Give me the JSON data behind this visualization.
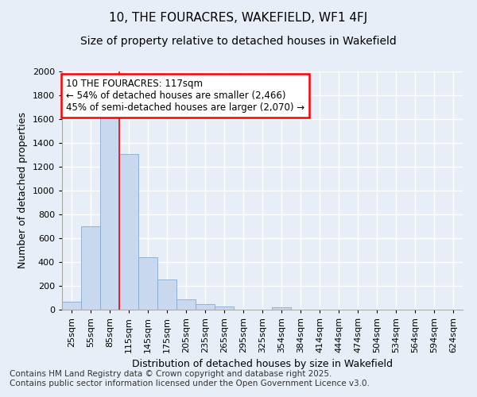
{
  "title1": "10, THE FOURACRES, WAKEFIELD, WF1 4FJ",
  "title2": "Size of property relative to detached houses in Wakefield",
  "xlabel": "Distribution of detached houses by size in Wakefield",
  "ylabel": "Number of detached properties",
  "bar_color": "#c8d8ee",
  "bar_edge_color": "#88aacc",
  "background_color": "#e8eef8",
  "grid_color": "#ffffff",
  "categories": [
    "25sqm",
    "55sqm",
    "85sqm",
    "115sqm",
    "145sqm",
    "175sqm",
    "205sqm",
    "235sqm",
    "265sqm",
    "295sqm",
    "325sqm",
    "354sqm",
    "384sqm",
    "414sqm",
    "444sqm",
    "474sqm",
    "504sqm",
    "534sqm",
    "564sqm",
    "594sqm",
    "624sqm"
  ],
  "values": [
    65,
    700,
    1660,
    1310,
    440,
    255,
    85,
    50,
    25,
    0,
    0,
    20,
    0,
    0,
    0,
    0,
    0,
    0,
    0,
    0,
    0
  ],
  "ylim": [
    0,
    2000
  ],
  "yticks": [
    0,
    200,
    400,
    600,
    800,
    1000,
    1200,
    1400,
    1600,
    1800,
    2000
  ],
  "red_line_x": 3.0,
  "annotation_line1": "10 THE FOURACRES: 117sqm",
  "annotation_line2": "← 54% of detached houses are smaller (2,466)",
  "annotation_line3": "45% of semi-detached houses are larger (2,070) →",
  "footer_line1": "Contains HM Land Registry data © Crown copyright and database right 2025.",
  "footer_line2": "Contains public sector information licensed under the Open Government Licence v3.0.",
  "title_fontsize": 11,
  "subtitle_fontsize": 10,
  "annotation_fontsize": 8.5,
  "footer_fontsize": 7.5,
  "axis_label_fontsize": 9,
  "tick_fontsize": 8
}
